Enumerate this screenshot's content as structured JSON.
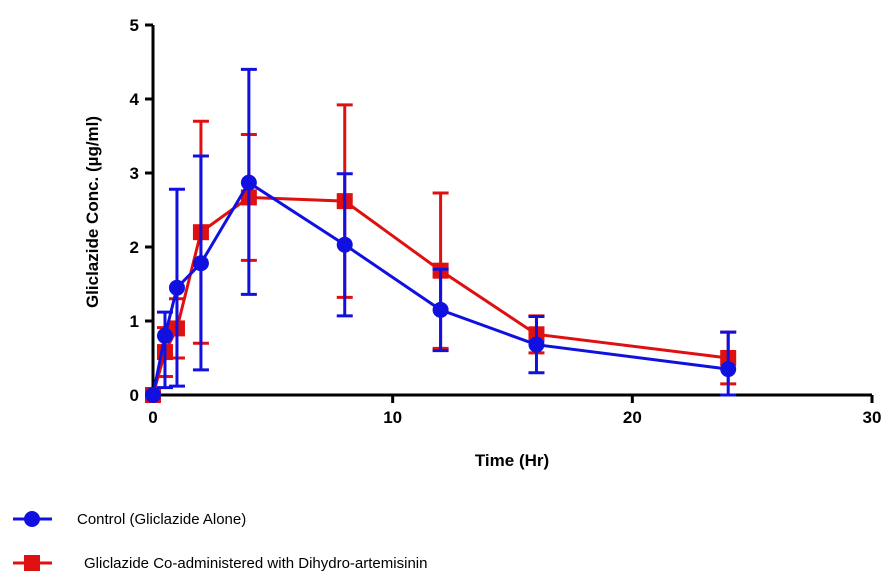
{
  "chart_data": {
    "type": "line",
    "xlabel": "Time (Hr)",
    "ylabel": "Gliclazide Conc. (µg/ml)",
    "xlim": [
      0,
      30
    ],
    "ylim": [
      0,
      5
    ],
    "xticks": [
      0,
      10,
      20,
      30
    ],
    "yticks": [
      0,
      1,
      2,
      3,
      4,
      5
    ],
    "grid": false,
    "legend_position": "bottom-left",
    "series": [
      {
        "name": "Control (Gliclazide Alone)",
        "color": "#1010e0",
        "marker": "circle",
        "x": [
          0,
          0.5,
          1,
          2,
          4,
          8,
          12,
          16,
          24
        ],
        "y": [
          0,
          0.8,
          1.45,
          1.78,
          2.87,
          2.03,
          1.15,
          0.68,
          0.35
        ],
        "err_low": [
          0,
          0.7,
          1.33,
          1.44,
          1.51,
          0.96,
          0.55,
          0.38,
          0.35
        ],
        "err_high": [
          0,
          0.32,
          1.33,
          1.45,
          1.53,
          0.96,
          0.55,
          0.38,
          0.5
        ]
      },
      {
        "name": "Gliclazide Co-administered with Dihydro-artemisinin",
        "color": "#e01010",
        "marker": "square",
        "x": [
          0,
          0.5,
          1,
          2,
          4,
          8,
          12,
          16,
          24
        ],
        "y": [
          0,
          0.58,
          0.9,
          2.2,
          2.67,
          2.62,
          1.68,
          0.82,
          0.5
        ],
        "err_low": [
          0,
          0.33,
          0.4,
          1.5,
          0.85,
          1.3,
          1.05,
          0.25,
          0.35
        ],
        "err_high": [
          0,
          0.33,
          0.4,
          1.5,
          0.85,
          1.3,
          1.05,
          0.25,
          0.35
        ]
      }
    ]
  }
}
